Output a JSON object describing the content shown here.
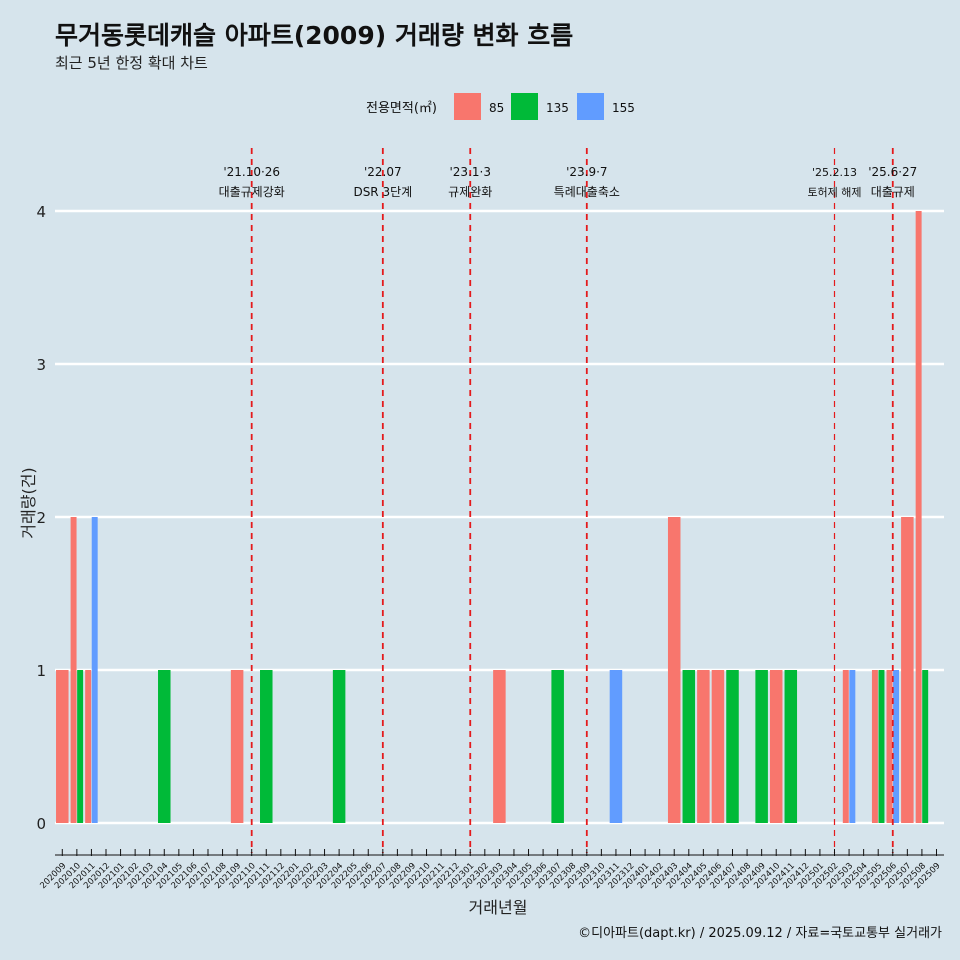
{
  "title": "무거동롯데캐슬 아파트(2009) 거래량 변화 흐름",
  "subtitle": "최근 5년 한정 확대 차트",
  "caption": "©디아파트(dapt.kr) / 2025.09.12 / 자료=국토교통부 실거래가",
  "colors": {
    "85": "#f8766d",
    "135": "#00ba38",
    "155": "#619cff",
    "event_line": "#e41a1c",
    "grid": "#ffffff",
    "background": "#d6e4ec"
  },
  "chart_data": {
    "type": "bar",
    "xlabel": "거래년월",
    "ylabel": "거래량(건)",
    "ylim": [
      0,
      4
    ],
    "y_ticks": [
      0,
      1,
      2,
      3,
      4
    ],
    "legend": {
      "title": "전용면적(㎡)",
      "position": "top",
      "entries": [
        "85",
        "135",
        "155"
      ]
    },
    "categories": [
      "202009",
      "202010",
      "202011",
      "202012",
      "202101",
      "202102",
      "202103",
      "202104",
      "202105",
      "202106",
      "202107",
      "202108",
      "202109",
      "202110",
      "202111",
      "202112",
      "202201",
      "202202",
      "202203",
      "202204",
      "202205",
      "202206",
      "202207",
      "202208",
      "202209",
      "202210",
      "202211",
      "202212",
      "202301",
      "202302",
      "202303",
      "202304",
      "202305",
      "202306",
      "202307",
      "202308",
      "202309",
      "202310",
      "202311",
      "202312",
      "202401",
      "202402",
      "202403",
      "202404",
      "202405",
      "202406",
      "202407",
      "202408",
      "202409",
      "202410",
      "202411",
      "202412",
      "202501",
      "202502",
      "202503",
      "202504",
      "202505",
      "202506",
      "202507",
      "202508",
      "202509"
    ],
    "bars": [
      {
        "month": "202009",
        "area": "85",
        "value": 1
      },
      {
        "month": "202010",
        "area": "85",
        "value": 2
      },
      {
        "month": "202010",
        "area": "135",
        "value": 1
      },
      {
        "month": "202011",
        "area": "85",
        "value": 1
      },
      {
        "month": "202011",
        "area": "155",
        "value": 2
      },
      {
        "month": "202104",
        "area": "135",
        "value": 1
      },
      {
        "month": "202109",
        "area": "85",
        "value": 1
      },
      {
        "month": "202111",
        "area": "135",
        "value": 1
      },
      {
        "month": "202204",
        "area": "135",
        "value": 1
      },
      {
        "month": "202303",
        "area": "85",
        "value": 1
      },
      {
        "month": "202307",
        "area": "135",
        "value": 1
      },
      {
        "month": "202311",
        "area": "155",
        "value": 1
      },
      {
        "month": "202403",
        "area": "85",
        "value": 2
      },
      {
        "month": "202404",
        "area": "135",
        "value": 1
      },
      {
        "month": "202405",
        "area": "85",
        "value": 1
      },
      {
        "month": "202406",
        "area": "85",
        "value": 1
      },
      {
        "month": "202407",
        "area": "135",
        "value": 1
      },
      {
        "month": "202409",
        "area": "135",
        "value": 1
      },
      {
        "month": "202410",
        "area": "85",
        "value": 1
      },
      {
        "month": "202411",
        "area": "135",
        "value": 1
      },
      {
        "month": "202503",
        "area": "85",
        "value": 1
      },
      {
        "month": "202503",
        "area": "155",
        "value": 1
      },
      {
        "month": "202505",
        "area": "85",
        "value": 1
      },
      {
        "month": "202505",
        "area": "135",
        "value": 1
      },
      {
        "month": "202506",
        "area": "85",
        "value": 1
      },
      {
        "month": "202506",
        "area": "155",
        "value": 1
      },
      {
        "month": "202507",
        "area": "85",
        "value": 2
      },
      {
        "month": "202508",
        "area": "85",
        "value": 4
      },
      {
        "month": "202508",
        "area": "135",
        "value": 1
      }
    ],
    "events": [
      {
        "month": "202110",
        "date": "'21.10·26",
        "label": "대출규제강화"
      },
      {
        "month": "202207",
        "date": "'22.07",
        "label": "DSR 3단계"
      },
      {
        "month": "202301",
        "date": "'23.1·3",
        "label": "규제완화"
      },
      {
        "month": "202309",
        "date": "'23.9·7",
        "label": "특례대출축소"
      },
      {
        "month": "202502",
        "date": "'25.2.13",
        "label": "토허제 해제"
      },
      {
        "month": "202506",
        "date": "'25.6·27",
        "label": "대출규제"
      }
    ]
  }
}
